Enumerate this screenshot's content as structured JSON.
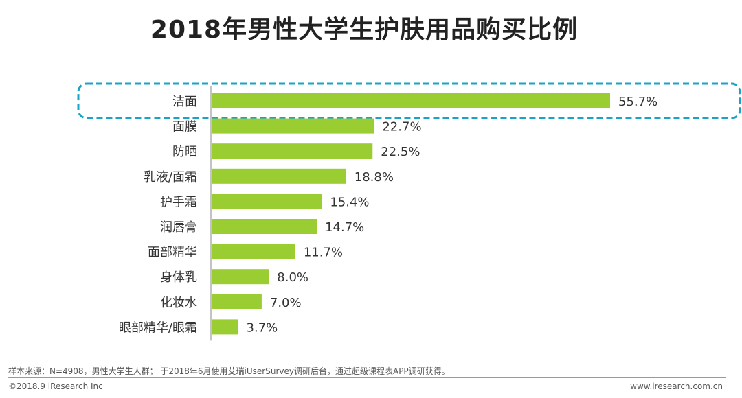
{
  "title": "2018年男性大学生护肤用品购买比例",
  "chart_data": {
    "type": "bar",
    "orientation": "horizontal",
    "title": "2018年男性大学生护肤用品购买比例",
    "categories": [
      "洁面",
      "面膜",
      "防晒",
      "乳液/面霜",
      "护手霜",
      "润唇膏",
      "面部精华",
      "身体乳",
      "化妆水",
      "眼部精华/眼霜"
    ],
    "values": [
      55.7,
      22.7,
      22.5,
      18.8,
      15.4,
      14.7,
      11.7,
      8.0,
      7.0,
      3.7
    ],
    "labels": [
      "55.7%",
      "22.7%",
      "22.5%",
      "18.8%",
      "15.4%",
      "14.7%",
      "11.7%",
      "8.0%",
      "7.0%",
      "3.7%"
    ],
    "unit": "%",
    "xlim": [
      0,
      55.7
    ],
    "highlighted_category": "洁面",
    "bar_color": "#9acd32",
    "highlight_color": "#1aa3c8"
  },
  "footer": {
    "source": "样本来源：N=4908，男性大学生人群； 于2018年6月使用艾瑞iUserSurvey调研后台，通过超级课程表APP调研获得。",
    "copyright": "©2018.9 iResearch Inc",
    "website": "www.iresearch.com.cn"
  }
}
